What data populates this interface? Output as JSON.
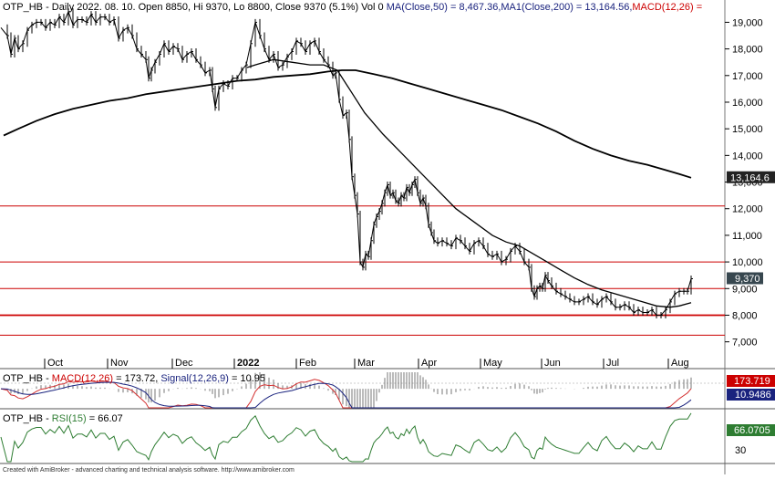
{
  "header": {
    "symbol": "OTP_HB",
    "info": " - Daily 2022. 08. 10. Open 8850, Hi 9370, Lo 8800, Close 9370 (5.1%) Vol 0 ",
    "ma50_label": "MA(Close,50) = 8,467.36,",
    "ma200_label": "MA1(Close,200) = 13,164.56,",
    "macd_label": "MACD(12,26) ="
  },
  "colors": {
    "price": "#000000",
    "ma": "#000000",
    "support_lines": "#cc0000",
    "ma50_text": "#1a237e",
    "ma200_text": "#1a237e",
    "macd_text": "#cc0000",
    "macd_line": "#d32f2f",
    "signal_line": "#1a237e",
    "macd_histogram": "#555555",
    "rsi_line": "#2e7d32",
    "price_badge": "#37474f",
    "ma_badge": "#222222",
    "macd_badge": "#cc0000",
    "signal_badge": "#1a237e",
    "rsi_badge": "#2e7d32"
  },
  "chart_data": [
    {
      "type": "line",
      "subtype": "ohlc-bar",
      "name": "OTP_HB",
      "y_ticks": [
        7000,
        8000,
        9000,
        10000,
        11000,
        12000,
        13000,
        14000,
        15000,
        16000,
        17000,
        18000,
        19000
      ],
      "y_tick_labels": [
        "7,000",
        "8,000",
        "9,000",
        "10,000",
        "11,000",
        "12,000",
        "13,000",
        "14,000",
        "15,000",
        "16,000",
        "17,000",
        "18,000",
        "19,000"
      ],
      "ylim": [
        6200,
        19700
      ],
      "x_labels": [
        "Oct",
        "Nov",
        "Dec",
        "2022",
        "Feb",
        "Mar",
        "Apr",
        "May",
        "Jun",
        "Jul",
        "Aug"
      ],
      "horizontal_levels": [
        12100,
        10000,
        9000,
        8000,
        7250
      ],
      "value_badges": {
        "ma200": "13,164.6",
        "close": "9,370"
      },
      "price_path": [
        [
          1,
          18800
        ],
        [
          8,
          18500
        ],
        [
          12,
          17800
        ],
        [
          16,
          18400
        ],
        [
          20,
          18000
        ],
        [
          25,
          18200
        ],
        [
          30,
          18700
        ],
        [
          35,
          18900
        ],
        [
          40,
          19000
        ],
        [
          45,
          19000
        ],
        [
          50,
          18800
        ],
        [
          55,
          19000
        ],
        [
          60,
          18900
        ],
        [
          65,
          19200
        ],
        [
          70,
          19000
        ],
        [
          75,
          19400
        ],
        [
          80,
          18900
        ],
        [
          85,
          19100
        ],
        [
          90,
          19100
        ],
        [
          95,
          19000
        ],
        [
          100,
          19300
        ],
        [
          105,
          19000
        ],
        [
          110,
          19200
        ],
        [
          115,
          19200
        ],
        [
          120,
          19000
        ],
        [
          125,
          19100
        ],
        [
          130,
          18400
        ],
        [
          135,
          18700
        ],
        [
          140,
          18800
        ],
        [
          145,
          18500
        ],
        [
          150,
          18000
        ],
        [
          155,
          17800
        ],
        [
          160,
          17600
        ],
        [
          163,
          16900
        ],
        [
          166,
          17200
        ],
        [
          170,
          17500
        ],
        [
          175,
          17800
        ],
        [
          180,
          18200
        ],
        [
          185,
          17900
        ],
        [
          190,
          18100
        ],
        [
          195,
          18000
        ],
        [
          200,
          17600
        ],
        [
          205,
          17800
        ],
        [
          210,
          17900
        ],
        [
          215,
          17600
        ],
        [
          220,
          17400
        ],
        [
          225,
          17100
        ],
        [
          230,
          17200
        ],
        [
          233,
          16500
        ],
        [
          236,
          15800
        ],
        [
          240,
          16500
        ],
        [
          245,
          16700
        ],
        [
          250,
          16600
        ],
        [
          255,
          16900
        ],
        [
          260,
          16900
        ],
        [
          265,
          17200
        ],
        [
          270,
          17400
        ],
        [
          275,
          18200
        ],
        [
          280,
          19000
        ],
        [
          285,
          18500
        ],
        [
          290,
          18000
        ],
        [
          295,
          17600
        ],
        [
          300,
          17800
        ],
        [
          305,
          17300
        ],
        [
          310,
          17400
        ],
        [
          315,
          17700
        ],
        [
          320,
          17900
        ],
        [
          325,
          18300
        ],
        [
          330,
          18200
        ],
        [
          335,
          17900
        ],
        [
          340,
          18200
        ],
        [
          345,
          18300
        ],
        [
          350,
          17900
        ],
        [
          355,
          17600
        ],
        [
          360,
          17400
        ],
        [
          365,
          17000
        ],
        [
          368,
          17100
        ],
        [
          372,
          16100
        ],
        [
          376,
          15500
        ],
        [
          380,
          15600
        ],
        [
          383,
          14600
        ],
        [
          386,
          13200
        ],
        [
          389,
          12500
        ],
        [
          392,
          11800
        ],
        [
          395,
          10000
        ],
        [
          398,
          9800
        ],
        [
          401,
          10300
        ],
        [
          404,
          10200
        ],
        [
          407,
          10800
        ],
        [
          410,
          11400
        ],
        [
          413,
          11700
        ],
        [
          416,
          11900
        ],
        [
          419,
          12200
        ],
        [
          422,
          12600
        ],
        [
          425,
          12900
        ],
        [
          428,
          12500
        ],
        [
          431,
          12600
        ],
        [
          434,
          12300
        ],
        [
          437,
          12200
        ],
        [
          440,
          12500
        ],
        [
          443,
          12400
        ],
        [
          446,
          12800
        ],
        [
          449,
          12600
        ],
        [
          452,
          12900
        ],
        [
          455,
          13100
        ],
        [
          458,
          12600
        ],
        [
          461,
          12200
        ],
        [
          464,
          12400
        ],
        [
          467,
          12100
        ],
        [
          470,
          11400
        ],
        [
          473,
          11100
        ],
        [
          476,
          10800
        ],
        [
          480,
          10700
        ],
        [
          485,
          10800
        ],
        [
          490,
          10700
        ],
        [
          495,
          10600
        ],
        [
          500,
          10900
        ],
        [
          505,
          10800
        ],
        [
          510,
          10600
        ],
        [
          515,
          10400
        ],
        [
          520,
          10700
        ],
        [
          525,
          10800
        ],
        [
          530,
          10600
        ],
        [
          535,
          10300
        ],
        [
          540,
          10200
        ],
        [
          545,
          10300
        ],
        [
          550,
          10000
        ],
        [
          555,
          10100
        ],
        [
          560,
          10400
        ],
        [
          565,
          10600
        ],
        [
          570,
          10400
        ],
        [
          575,
          10000
        ],
        [
          580,
          9800
        ],
        [
          583,
          9000
        ],
        [
          586,
          8700
        ],
        [
          589,
          9000
        ],
        [
          592,
          9100
        ],
        [
          595,
          9000
        ],
        [
          598,
          9500
        ],
        [
          601,
          9300
        ],
        [
          605,
          9100
        ],
        [
          610,
          8900
        ],
        [
          615,
          8800
        ],
        [
          620,
          8700
        ],
        [
          625,
          8600
        ],
        [
          630,
          8500
        ],
        [
          635,
          8500
        ],
        [
          640,
          8600
        ],
        [
          645,
          8700
        ],
        [
          650,
          8500
        ],
        [
          655,
          8400
        ],
        [
          660,
          8600
        ],
        [
          665,
          8700
        ],
        [
          670,
          8500
        ],
        [
          675,
          8300
        ],
        [
          680,
          8300
        ],
        [
          685,
          8400
        ],
        [
          690,
          8300
        ],
        [
          695,
          8100
        ],
        [
          700,
          8200
        ],
        [
          705,
          8100
        ],
        [
          710,
          8100
        ],
        [
          715,
          8200
        ],
        [
          720,
          8000
        ],
        [
          725,
          8000
        ],
        [
          730,
          8200
        ],
        [
          735,
          8500
        ],
        [
          740,
          8800
        ],
        [
          745,
          8900
        ],
        [
          750,
          8900
        ],
        [
          754,
          8900
        ],
        [
          758,
          9370
        ]
      ],
      "ma50_path": [
        [
          271,
          17300
        ],
        [
          280,
          17400
        ],
        [
          300,
          17600
        ],
        [
          320,
          17500
        ],
        [
          340,
          17400
        ],
        [
          355,
          17400
        ],
        [
          370,
          17200
        ],
        [
          385,
          16400
        ],
        [
          400,
          15600
        ],
        [
          420,
          14800
        ],
        [
          440,
          14100
        ],
        [
          460,
          13400
        ],
        [
          480,
          12700
        ],
        [
          500,
          12000
        ],
        [
          520,
          11500
        ],
        [
          540,
          11000
        ],
        [
          555,
          10750
        ],
        [
          570,
          10600
        ],
        [
          585,
          10300
        ],
        [
          600,
          10000
        ],
        [
          615,
          9700
        ],
        [
          630,
          9400
        ],
        [
          645,
          9150
        ],
        [
          660,
          8950
        ],
        [
          675,
          8800
        ],
        [
          690,
          8650
        ],
        [
          705,
          8500
        ],
        [
          720,
          8350
        ],
        [
          735,
          8300
        ],
        [
          745,
          8350
        ],
        [
          758,
          8470
        ]
      ],
      "ma200_path": [
        [
          4,
          14750
        ],
        [
          20,
          15000
        ],
        [
          40,
          15300
        ],
        [
          60,
          15550
        ],
        [
          80,
          15750
        ],
        [
          100,
          15900
        ],
        [
          120,
          16050
        ],
        [
          140,
          16150
        ],
        [
          160,
          16300
        ],
        [
          180,
          16400
        ],
        [
          200,
          16500
        ],
        [
          220,
          16600
        ],
        [
          240,
          16700
        ],
        [
          260,
          16800
        ],
        [
          280,
          16850
        ],
        [
          300,
          16950
        ],
        [
          320,
          17000
        ],
        [
          340,
          17050
        ],
        [
          360,
          17150
        ],
        [
          375,
          17200
        ],
        [
          390,
          17200
        ],
        [
          410,
          17050
        ],
        [
          430,
          16900
        ],
        [
          450,
          16700
        ],
        [
          470,
          16500
        ],
        [
          490,
          16300
        ],
        [
          510,
          16100
        ],
        [
          530,
          15900
        ],
        [
          550,
          15700
        ],
        [
          570,
          15450
        ],
        [
          590,
          15200
        ],
        [
          610,
          14900
        ],
        [
          630,
          14550
        ],
        [
          650,
          14250
        ],
        [
          670,
          14000
        ],
        [
          690,
          13800
        ],
        [
          710,
          13650
        ],
        [
          730,
          13450
        ],
        [
          745,
          13300
        ],
        [
          758,
          13164
        ]
      ]
    },
    {
      "type": "line",
      "name": "MACD",
      "ylim": [
        -300,
        260
      ],
      "series": [
        {
          "name": "MACD(12,26)",
          "last": "173.72",
          "badge": "173.719"
        },
        {
          "name": "Signal(12,26,9)",
          "last": "10.95",
          "badge": "10.9486"
        }
      ]
    },
    {
      "type": "line",
      "name": "RSI",
      "ylim": [
        10,
        90
      ],
      "series": [
        {
          "name": "RSI(15)",
          "last": "66.07",
          "badge": "66.0705"
        }
      ],
      "y_ticks": [
        30
      ],
      "y_tick_labels": [
        "30"
      ]
    }
  ],
  "macd_panel": {
    "title": "OTP_HB",
    "macd_label": "MACD(12,26)",
    "macd_value": " = 173.72, ",
    "signal_label": "Signal(12,26,9)",
    "signal_value": " = 10.95"
  },
  "rsi_panel": {
    "title": "OTP_HB",
    "rsi_label": "RSI(15)",
    "rsi_value": " = 66.07"
  },
  "footer": "Created with AmiBroker - advanced charting and technical analysis software. http://www.amibroker.com"
}
